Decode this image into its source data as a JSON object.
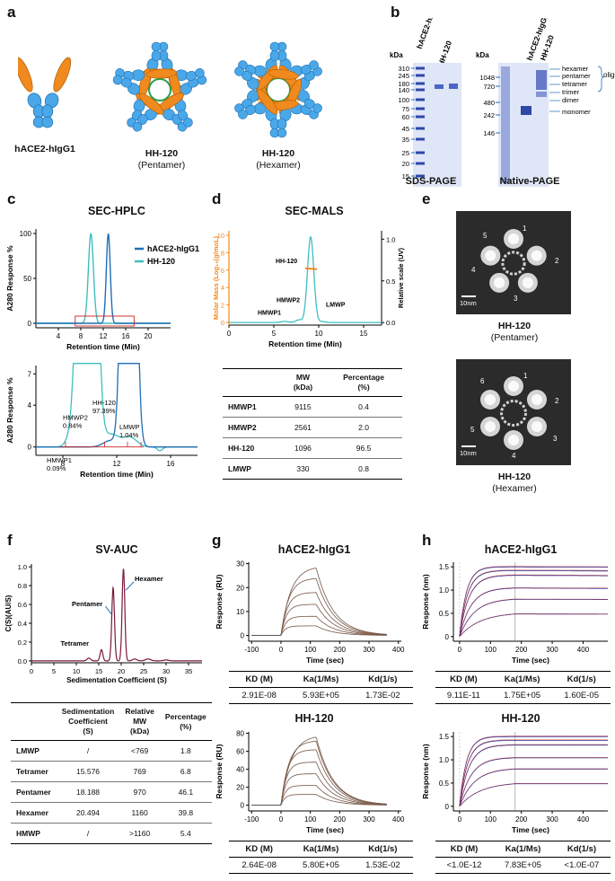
{
  "panels": {
    "a": "a",
    "b": "b",
    "c": "c",
    "d": "d",
    "e": "e",
    "f": "f",
    "g": "g",
    "h": "h"
  },
  "panel_a": {
    "label1": "hACE2-hIgG1",
    "label2": "HH-120",
    "label2_sub": "(Pentamer)",
    "label3": "HH-120",
    "label3_sub": "(Hexamer)"
  },
  "panel_b": {
    "kda1": "kDa",
    "kda2": "kDa",
    "lane1": "hACE2-hIgG1",
    "lane2": "HH-120",
    "sds_markers": [
      "310",
      "245",
      "180",
      "140",
      "100",
      "75",
      "60",
      "45",
      "35",
      "25",
      "20",
      "15"
    ],
    "native_markers": [
      "1048",
      "720",
      "480",
      "242",
      "146"
    ],
    "sds_title": "SDS-PAGE",
    "native_title": "Native-PAGE",
    "oligo_labels": [
      "hexamer",
      "pentamer",
      "tetramer",
      "trimer",
      "dimer"
    ],
    "oligomer": "oligomer",
    "monomer": "monomer"
  },
  "panel_c": {
    "title": "SEC-HPLC",
    "ylabel": "A280 Response %",
    "xlabel": "Retention time (Min)",
    "legend": [
      "hACE2-hIgG1",
      "HH-120"
    ],
    "top_xticks": [
      "4",
      "8",
      "12",
      "16",
      "20"
    ],
    "top_yticks": [
      "0",
      "50",
      "100"
    ],
    "bot_xticks": [
      "8",
      "12",
      "16"
    ],
    "bot_yticks": [
      "0",
      "4",
      "7"
    ],
    "annotations": [
      {
        "name": "HMWP2",
        "pct": "0.84%"
      },
      {
        "name": "HH-120",
        "pct": "97.39%"
      },
      {
        "name": "LMWP",
        "pct": "1.04%"
      },
      {
        "name": "HMWP1",
        "pct": "0.09%"
      }
    ]
  },
  "panel_d": {
    "title": "SEC-MALS",
    "ylabel_left": "Molar Mass (Log₁₀(g/moL)",
    "ylabel_right": "Relative scale (UV)",
    "xlabel": "Retention time (Min)",
    "xticks": [
      "0",
      "5",
      "10",
      "15"
    ],
    "yticks_left": [
      "0",
      "2",
      "4",
      "6",
      "8",
      "10"
    ],
    "yticks_right": [
      "0.0",
      "0.5",
      "1.0"
    ],
    "peak_labels": [
      "HH-120",
      "HMWP2",
      "HMWP1",
      "LMWP"
    ],
    "table": {
      "headers": [
        "",
        "MW\n(kDa)",
        "Percentage\n(%)"
      ],
      "rows": [
        [
          "HMWP1",
          "9115",
          "0.4"
        ],
        [
          "HMWP2",
          "2561",
          "2.0"
        ],
        [
          "HH-120",
          "1096",
          "96.5"
        ],
        [
          "LMWP",
          "330",
          "0.8"
        ]
      ]
    }
  },
  "panel_e": {
    "scale": "10nm",
    "pent_nums": [
      "1",
      "2",
      "3",
      "4",
      "5"
    ],
    "hex_nums": [
      "1",
      "2",
      "3",
      "4",
      "5",
      "6"
    ],
    "cap1": "HH-120",
    "cap1_sub": "(Pentamer)",
    "cap2": "HH-120",
    "cap2_sub": "(Hexamer)"
  },
  "panel_f": {
    "title": "SV-AUC",
    "ylabel": "C(S)(AU/S)",
    "xlabel": "Sedimentation Coefficient (S)",
    "xticks": [
      "0",
      "5",
      "10",
      "15",
      "20",
      "25",
      "30",
      "35"
    ],
    "yticks": [
      "0.0",
      "0.2",
      "0.4",
      "0.6",
      "0.8",
      "1.0"
    ],
    "peaks": [
      "Tetramer",
      "Pentamer",
      "Hexamer"
    ],
    "table": {
      "headers": [
        "",
        "Sedimentation\nCoefficient\n(S)",
        "Relative\nMW\n(kDa)",
        "Percentage\n(%)"
      ],
      "rows": [
        [
          "LMWP",
          "/",
          "<769",
          "1.8"
        ],
        [
          "Tetramer",
          "15.576",
          "769",
          "6.8"
        ],
        [
          "Pentamer",
          "18.188",
          "970",
          "46.1"
        ],
        [
          "Hexamer",
          "20.494",
          "1160",
          "39.8"
        ],
        [
          "HMWP",
          "/",
          ">1160",
          "5.4"
        ]
      ]
    }
  },
  "panel_g": {
    "title1": "hACE2-hIgG1",
    "title2": "HH-120",
    "ylabel": "Response (RU)",
    "xlabel": "Time (sec)",
    "xticks": [
      "-100",
      "0",
      "100",
      "200",
      "300",
      "400"
    ],
    "yticks1": [
      "0",
      "10",
      "20",
      "30"
    ],
    "yticks2": [
      "0",
      "20",
      "40",
      "60",
      "80"
    ],
    "table_headers": [
      "KD (M)",
      "Ka(1/Ms)",
      "Kd(1/s)"
    ],
    "row1": [
      "2.91E-08",
      "5.93E+05",
      "1.73E-02"
    ],
    "row2": [
      "2.64E-08",
      "5.80E+05",
      "1.53E-02"
    ]
  },
  "panel_h": {
    "title1": "hACE2-hIgG1",
    "title2": "HH-120",
    "ylabel": "Response (nm)",
    "xlabel": "Time (sec)",
    "xticks": [
      "0",
      "100",
      "200",
      "300",
      "400"
    ],
    "xticks_b": [
      "0",
      "100",
      "200",
      "300",
      "400"
    ],
    "yticks": [
      "0",
      "0.5",
      "1.0",
      "1.5"
    ],
    "table_headers": [
      "KD (M)",
      "Ka(1/Ms)",
      "Kd(1/s)"
    ],
    "row1": [
      "9.11E-11",
      "1.75E+05",
      "1.60E-05"
    ],
    "row2": [
      "<1.0E-12",
      "7.83E+05",
      "<1.0E-07"
    ]
  },
  "colors": {
    "dark_blue": "#1f6fb5",
    "light_teal": "#3fbfbf",
    "orange": "#f08a1e",
    "red": "#cc2222",
    "gel": "#3b57b8"
  }
}
